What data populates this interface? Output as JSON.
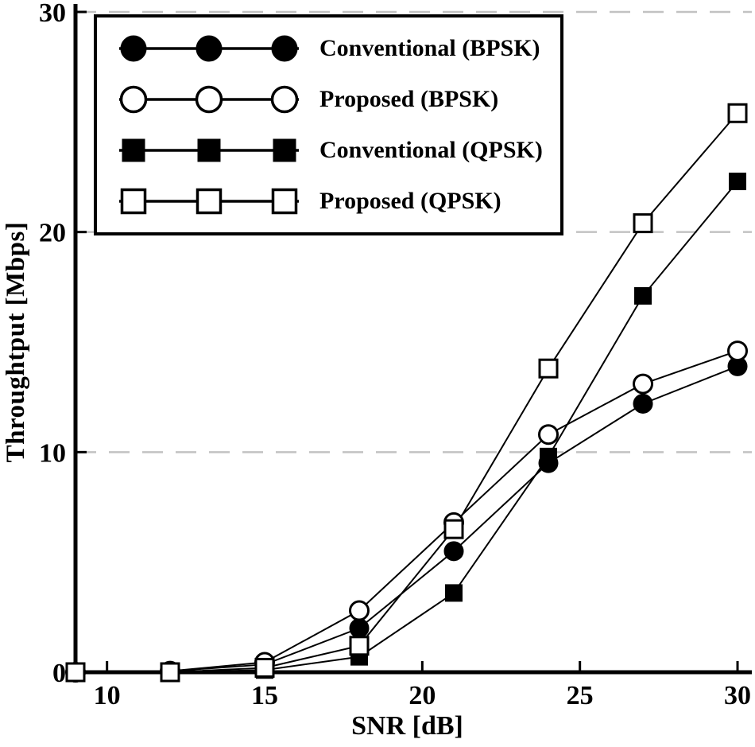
{
  "chart_data": {
    "type": "line",
    "title": "",
    "xlabel": "SNR [dB]",
    "ylabel": "Throughtput [Mbps]",
    "xlim": [
      9,
      30.05
    ],
    "ylim": [
      0,
      30
    ],
    "x_ticks": [
      10,
      15,
      20,
      25,
      30
    ],
    "y_ticks": [
      0,
      10,
      20,
      30
    ],
    "gridlines_y": [
      10,
      20,
      30
    ],
    "grid_on": true,
    "grid_style": "dashed",
    "grid_color": "#c2c2c2",
    "axis_color": "#000000",
    "line_color": "#000000",
    "legend_position": "top-left",
    "x": [
      9,
      12,
      15,
      18,
      21,
      24,
      27,
      30
    ],
    "series": [
      {
        "name": "Conventional (BPSK)",
        "marker": "circle-filled",
        "values": [
          0,
          0.05,
          0.35,
          2.0,
          5.5,
          9.5,
          12.2,
          13.9
        ]
      },
      {
        "name": "Proposed (BPSK)",
        "marker": "circle-open",
        "values": [
          0,
          0.05,
          0.45,
          2.8,
          6.8,
          10.8,
          13.1,
          14.6
        ]
      },
      {
        "name": "Conventional (QPSK)",
        "marker": "square-filled",
        "values": [
          0,
          0,
          0.1,
          0.7,
          3.6,
          9.8,
          17.1,
          22.3
        ]
      },
      {
        "name": "Proposed (QPSK)",
        "marker": "square-open",
        "values": [
          0,
          0,
          0.2,
          1.2,
          6.5,
          13.8,
          20.4,
          25.4
        ]
      }
    ]
  }
}
